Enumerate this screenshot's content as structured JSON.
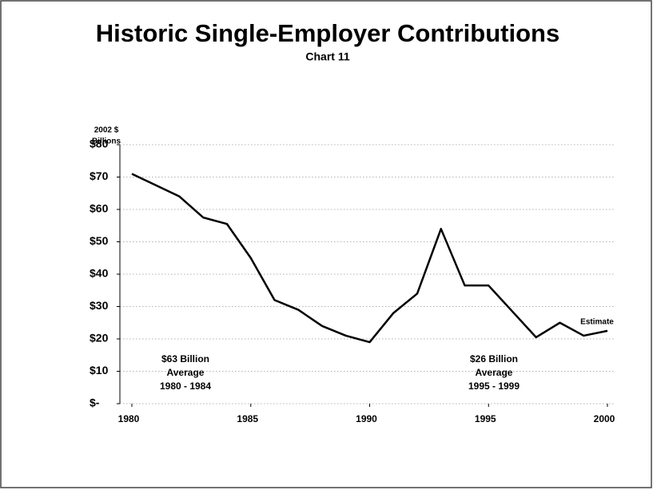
{
  "chart_data": {
    "type": "line",
    "title": "Historic Single-Employer Contributions",
    "subtitle": "Chart 11",
    "ylabel": [
      "2002 $",
      "Billions"
    ],
    "x": [
      1980,
      1981,
      1982,
      1983,
      1984,
      1985,
      1986,
      1987,
      1988,
      1989,
      1990,
      1991,
      1992,
      1993,
      1994,
      1995,
      1996,
      1997,
      1998,
      1999,
      2000
    ],
    "series": [
      {
        "name": null,
        "color": "#000000",
        "values": [
          71,
          67.5,
          64,
          57.5,
          55.5,
          45,
          32,
          29,
          24,
          21,
          19,
          28,
          34,
          54,
          36.5,
          36.5,
          28.5,
          20.5,
          25,
          21,
          22.5
        ]
      }
    ],
    "xlim": [
      1980,
      2000
    ],
    "xticks": [
      1980,
      1985,
      1990,
      1995,
      2000
    ],
    "ylim": [
      0,
      80
    ],
    "yticks": [
      {
        "value": 0,
        "label": "$-"
      },
      {
        "value": 10,
        "label": "$10"
      },
      {
        "value": 20,
        "label": "$20"
      },
      {
        "value": 30,
        "label": "$30"
      },
      {
        "value": 40,
        "label": "$40"
      },
      {
        "value": 50,
        "label": "$50"
      },
      {
        "value": 60,
        "label": "$60"
      },
      {
        "value": 70,
        "label": "$70"
      },
      {
        "value": 80,
        "label": "$80"
      }
    ],
    "grid": true,
    "annotations": [
      [
        "$63 Billion",
        "Average",
        "1980 - 1984"
      ],
      [
        "$26 Billion",
        "Average",
        "1995 - 1999"
      ],
      [
        "Estimate"
      ]
    ]
  }
}
